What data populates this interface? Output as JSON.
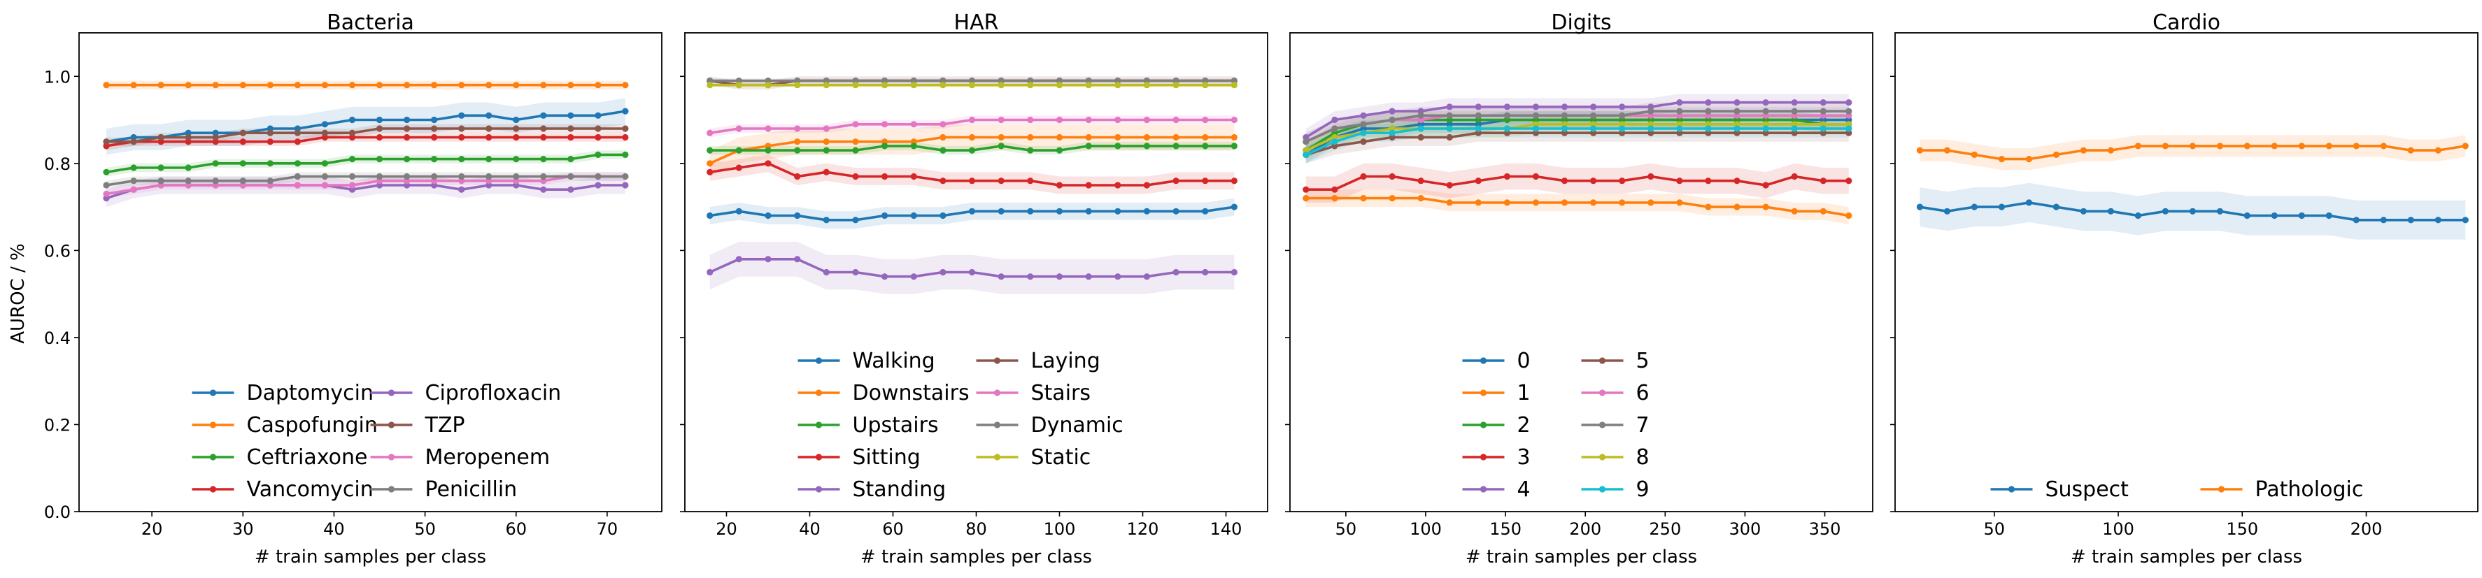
{
  "figure": {
    "ylabel": "AUROC / %"
  },
  "chart_data": [
    {
      "type": "line",
      "title": "Bacteria",
      "xlabel": "# train samples per class",
      "ylabel": "AUROC / %",
      "xlim": [
        12,
        76
      ],
      "ylim": [
        0,
        1.1
      ],
      "xticks": [
        20,
        30,
        40,
        50,
        60,
        70
      ],
      "yticks": [
        0.0,
        0.2,
        0.4,
        0.6,
        0.8,
        1.0
      ],
      "yticklabels": [
        "0.0",
        "0.2",
        "0.4",
        "0.6",
        "0.8",
        "1.0"
      ],
      "show_yticklabels": true,
      "legend_ncol": 2,
      "legend_loc": "lower-center",
      "x": [
        15,
        18,
        21,
        24,
        27,
        30,
        33,
        36,
        39,
        42,
        45,
        48,
        51,
        54,
        57,
        60,
        63,
        66,
        69,
        72
      ],
      "series": [
        {
          "name": "Daptomycin",
          "color": "#1f77b4",
          "band": 0.03,
          "values": [
            0.85,
            0.86,
            0.86,
            0.87,
            0.87,
            0.87,
            0.88,
            0.88,
            0.89,
            0.9,
            0.9,
            0.9,
            0.9,
            0.91,
            0.91,
            0.9,
            0.91,
            0.91,
            0.91,
            0.92
          ]
        },
        {
          "name": "Caspofungin",
          "color": "#ff7f0e",
          "band": 0.01,
          "values": [
            0.98,
            0.98,
            0.98,
            0.98,
            0.98,
            0.98,
            0.98,
            0.98,
            0.98,
            0.98,
            0.98,
            0.98,
            0.98,
            0.98,
            0.98,
            0.98,
            0.98,
            0.98,
            0.98,
            0.98
          ]
        },
        {
          "name": "Ceftriaxone",
          "color": "#2ca02c",
          "band": 0.01,
          "values": [
            0.78,
            0.79,
            0.79,
            0.79,
            0.8,
            0.8,
            0.8,
            0.8,
            0.8,
            0.81,
            0.81,
            0.81,
            0.81,
            0.81,
            0.81,
            0.81,
            0.81,
            0.81,
            0.82,
            0.82
          ]
        },
        {
          "name": "Vancomycin",
          "color": "#d62728",
          "band": 0.01,
          "values": [
            0.84,
            0.85,
            0.85,
            0.85,
            0.85,
            0.85,
            0.85,
            0.85,
            0.86,
            0.86,
            0.86,
            0.86,
            0.86,
            0.86,
            0.86,
            0.86,
            0.86,
            0.86,
            0.86,
            0.86
          ]
        },
        {
          "name": "Ciprofloxacin",
          "color": "#9467bd",
          "band": 0.02,
          "values": [
            0.72,
            0.74,
            0.75,
            0.75,
            0.75,
            0.75,
            0.75,
            0.75,
            0.75,
            0.74,
            0.75,
            0.75,
            0.75,
            0.74,
            0.75,
            0.75,
            0.74,
            0.74,
            0.75,
            0.75
          ]
        },
        {
          "name": "TZP",
          "color": "#8c564b",
          "band": 0.01,
          "values": [
            0.85,
            0.85,
            0.86,
            0.86,
            0.86,
            0.87,
            0.87,
            0.87,
            0.87,
            0.87,
            0.88,
            0.88,
            0.88,
            0.88,
            0.88,
            0.88,
            0.88,
            0.88,
            0.88,
            0.88
          ]
        },
        {
          "name": "Meropenem",
          "color": "#e377c2",
          "band": 0.01,
          "values": [
            0.73,
            0.74,
            0.75,
            0.75,
            0.75,
            0.75,
            0.75,
            0.75,
            0.75,
            0.75,
            0.76,
            0.76,
            0.76,
            0.76,
            0.76,
            0.76,
            0.76,
            0.77,
            0.77,
            0.77
          ]
        },
        {
          "name": "Penicillin",
          "color": "#7f7f7f",
          "band": 0.01,
          "values": [
            0.75,
            0.76,
            0.76,
            0.76,
            0.76,
            0.76,
            0.76,
            0.77,
            0.77,
            0.77,
            0.77,
            0.77,
            0.77,
            0.77,
            0.77,
            0.77,
            0.77,
            0.77,
            0.77,
            0.77
          ]
        }
      ]
    },
    {
      "type": "line",
      "title": "HAR",
      "xlabel": "# train samples per class",
      "xlim": [
        10,
        150
      ],
      "ylim": [
        0,
        1.1
      ],
      "xticks": [
        20,
        40,
        60,
        80,
        100,
        120,
        140
      ],
      "yticks": [
        0.0,
        0.2,
        0.4,
        0.6,
        0.8,
        1.0
      ],
      "show_yticklabels": false,
      "legend_ncol": 2,
      "legend_loc": "lower-center",
      "x": [
        16,
        23,
        30,
        37,
        44,
        51,
        58,
        65,
        72,
        79,
        86,
        93,
        100,
        107,
        114,
        121,
        128,
        135,
        142
      ],
      "series": [
        {
          "name": "Walking",
          "color": "#1f77b4",
          "band": 0.02,
          "values": [
            0.68,
            0.69,
            0.68,
            0.68,
            0.67,
            0.67,
            0.68,
            0.68,
            0.68,
            0.69,
            0.69,
            0.69,
            0.69,
            0.69,
            0.69,
            0.69,
            0.69,
            0.69,
            0.7
          ]
        },
        {
          "name": "Downstairs",
          "color": "#ff7f0e",
          "band": 0.03,
          "values": [
            0.8,
            0.83,
            0.84,
            0.85,
            0.85,
            0.85,
            0.85,
            0.85,
            0.86,
            0.86,
            0.86,
            0.86,
            0.86,
            0.86,
            0.86,
            0.86,
            0.86,
            0.86,
            0.86
          ]
        },
        {
          "name": "Upstairs",
          "color": "#2ca02c",
          "band": 0.01,
          "values": [
            0.83,
            0.83,
            0.83,
            0.83,
            0.83,
            0.83,
            0.84,
            0.84,
            0.83,
            0.83,
            0.84,
            0.83,
            0.83,
            0.84,
            0.84,
            0.84,
            0.84,
            0.84,
            0.84
          ]
        },
        {
          "name": "Sitting",
          "color": "#d62728",
          "band": 0.02,
          "values": [
            0.78,
            0.79,
            0.8,
            0.77,
            0.78,
            0.77,
            0.77,
            0.77,
            0.76,
            0.76,
            0.76,
            0.76,
            0.75,
            0.75,
            0.75,
            0.75,
            0.76,
            0.76,
            0.76
          ]
        },
        {
          "name": "Standing",
          "color": "#9467bd",
          "band": 0.04,
          "values": [
            0.55,
            0.58,
            0.58,
            0.58,
            0.55,
            0.55,
            0.54,
            0.54,
            0.55,
            0.55,
            0.54,
            0.54,
            0.54,
            0.54,
            0.54,
            0.54,
            0.55,
            0.55,
            0.55
          ]
        },
        {
          "name": "Laying",
          "color": "#8c564b",
          "band": 0.01,
          "values": [
            0.99,
            0.98,
            0.98,
            0.99,
            0.99,
            0.99,
            0.99,
            0.99,
            0.99,
            0.99,
            0.99,
            0.99,
            0.99,
            0.99,
            0.99,
            0.99,
            0.99,
            0.99,
            0.99
          ]
        },
        {
          "name": "Stairs",
          "color": "#e377c2",
          "band": 0.01,
          "values": [
            0.87,
            0.88,
            0.88,
            0.88,
            0.88,
            0.89,
            0.89,
            0.89,
            0.89,
            0.9,
            0.9,
            0.9,
            0.9,
            0.9,
            0.9,
            0.9,
            0.9,
            0.9,
            0.9
          ]
        },
        {
          "name": "Dynamic",
          "color": "#7f7f7f",
          "band": 0.005,
          "values": [
            0.99,
            0.99,
            0.99,
            0.99,
            0.99,
            0.99,
            0.99,
            0.99,
            0.99,
            0.99,
            0.99,
            0.99,
            0.99,
            0.99,
            0.99,
            0.99,
            0.99,
            0.99,
            0.99
          ]
        },
        {
          "name": "Static",
          "color": "#bcbd22",
          "band": 0.005,
          "values": [
            0.98,
            0.98,
            0.98,
            0.98,
            0.98,
            0.98,
            0.98,
            0.98,
            0.98,
            0.98,
            0.98,
            0.98,
            0.98,
            0.98,
            0.98,
            0.98,
            0.98,
            0.98,
            0.98
          ]
        }
      ]
    },
    {
      "type": "line",
      "title": "Digits",
      "xlabel": "# train samples per class",
      "xlim": [
        15,
        380
      ],
      "ylim": [
        0,
        1.1
      ],
      "xticks": [
        50,
        100,
        150,
        200,
        250,
        300,
        350
      ],
      "yticks": [
        0.0,
        0.2,
        0.4,
        0.6,
        0.8,
        1.0
      ],
      "show_yticklabels": false,
      "legend_ncol": 2,
      "legend_loc": "lower-center",
      "x": [
        25,
        43,
        61,
        79,
        97,
        115,
        133,
        151,
        169,
        187,
        205,
        223,
        241,
        259,
        277,
        295,
        313,
        331,
        349,
        365
      ],
      "series": [
        {
          "name": "0",
          "color": "#1f77b4",
          "band": 0.02,
          "values": [
            0.82,
            0.86,
            0.88,
            0.88,
            0.89,
            0.89,
            0.89,
            0.9,
            0.9,
            0.9,
            0.9,
            0.9,
            0.9,
            0.9,
            0.9,
            0.9,
            0.9,
            0.9,
            0.9,
            0.9
          ]
        },
        {
          "name": "1",
          "color": "#ff7f0e",
          "band": 0.02,
          "values": [
            0.72,
            0.72,
            0.72,
            0.72,
            0.72,
            0.71,
            0.71,
            0.71,
            0.71,
            0.71,
            0.71,
            0.71,
            0.71,
            0.71,
            0.7,
            0.7,
            0.7,
            0.69,
            0.69,
            0.68
          ]
        },
        {
          "name": "2",
          "color": "#2ca02c",
          "band": 0.02,
          "values": [
            0.83,
            0.87,
            0.89,
            0.9,
            0.9,
            0.9,
            0.9,
            0.9,
            0.9,
            0.9,
            0.9,
            0.9,
            0.9,
            0.9,
            0.9,
            0.9,
            0.9,
            0.9,
            0.89,
            0.89
          ]
        },
        {
          "name": "3",
          "color": "#d62728",
          "band": 0.03,
          "values": [
            0.74,
            0.74,
            0.77,
            0.77,
            0.76,
            0.75,
            0.76,
            0.77,
            0.77,
            0.76,
            0.76,
            0.76,
            0.77,
            0.76,
            0.76,
            0.76,
            0.75,
            0.77,
            0.76,
            0.76
          ]
        },
        {
          "name": "4",
          "color": "#9467bd",
          "band": 0.02,
          "values": [
            0.86,
            0.9,
            0.91,
            0.92,
            0.92,
            0.93,
            0.93,
            0.93,
            0.93,
            0.93,
            0.93,
            0.93,
            0.93,
            0.94,
            0.94,
            0.94,
            0.94,
            0.94,
            0.94,
            0.94
          ]
        },
        {
          "name": "5",
          "color": "#8c564b",
          "band": 0.02,
          "values": [
            0.82,
            0.84,
            0.85,
            0.86,
            0.86,
            0.86,
            0.87,
            0.87,
            0.87,
            0.87,
            0.87,
            0.87,
            0.87,
            0.87,
            0.87,
            0.87,
            0.87,
            0.87,
            0.87,
            0.87
          ]
        },
        {
          "name": "6",
          "color": "#e377c2",
          "band": 0.02,
          "values": [
            0.85,
            0.88,
            0.89,
            0.9,
            0.9,
            0.91,
            0.91,
            0.91,
            0.91,
            0.91,
            0.91,
            0.91,
            0.91,
            0.91,
            0.91,
            0.91,
            0.91,
            0.91,
            0.91,
            0.91
          ]
        },
        {
          "name": "7",
          "color": "#7f7f7f",
          "band": 0.02,
          "values": [
            0.85,
            0.88,
            0.89,
            0.9,
            0.91,
            0.91,
            0.91,
            0.91,
            0.91,
            0.91,
            0.91,
            0.91,
            0.92,
            0.92,
            0.92,
            0.92,
            0.92,
            0.92,
            0.92,
            0.92
          ]
        },
        {
          "name": "8",
          "color": "#bcbd22",
          "band": 0.02,
          "values": [
            0.83,
            0.86,
            0.87,
            0.88,
            0.88,
            0.88,
            0.88,
            0.88,
            0.89,
            0.89,
            0.89,
            0.89,
            0.89,
            0.89,
            0.89,
            0.89,
            0.89,
            0.89,
            0.89,
            0.89
          ]
        },
        {
          "name": "9",
          "color": "#17becf",
          "band": 0.02,
          "values": [
            0.82,
            0.85,
            0.87,
            0.87,
            0.88,
            0.88,
            0.88,
            0.88,
            0.88,
            0.88,
            0.88,
            0.88,
            0.88,
            0.88,
            0.88,
            0.88,
            0.88,
            0.88,
            0.88,
            0.88
          ]
        }
      ]
    },
    {
      "type": "line",
      "title": "Cardio",
      "xlabel": "# train samples per class",
      "xlim": [
        10,
        245
      ],
      "ylim": [
        0,
        1.1
      ],
      "xticks": [
        50,
        100,
        150,
        200
      ],
      "yticks": [
        0.0,
        0.2,
        0.4,
        0.6,
        0.8,
        1.0
      ],
      "show_yticklabels": false,
      "legend_ncol": 2,
      "legend_loc": "lower-center",
      "x": [
        20,
        31,
        42,
        53,
        64,
        75,
        86,
        97,
        108,
        119,
        130,
        141,
        152,
        163,
        174,
        185,
        196,
        207,
        218,
        229,
        240
      ],
      "series": [
        {
          "name": "Suspect",
          "color": "#1f77b4",
          "band": 0.045,
          "values": [
            0.7,
            0.69,
            0.7,
            0.7,
            0.71,
            0.7,
            0.69,
            0.69,
            0.68,
            0.69,
            0.69,
            0.69,
            0.68,
            0.68,
            0.68,
            0.68,
            0.67,
            0.67,
            0.67,
            0.67,
            0.67
          ]
        },
        {
          "name": "Pathologic",
          "color": "#ff7f0e",
          "band": 0.025,
          "values": [
            0.83,
            0.83,
            0.82,
            0.81,
            0.81,
            0.82,
            0.83,
            0.83,
            0.84,
            0.84,
            0.84,
            0.84,
            0.84,
            0.84,
            0.84,
            0.84,
            0.84,
            0.84,
            0.83,
            0.83,
            0.84
          ]
        }
      ]
    }
  ]
}
